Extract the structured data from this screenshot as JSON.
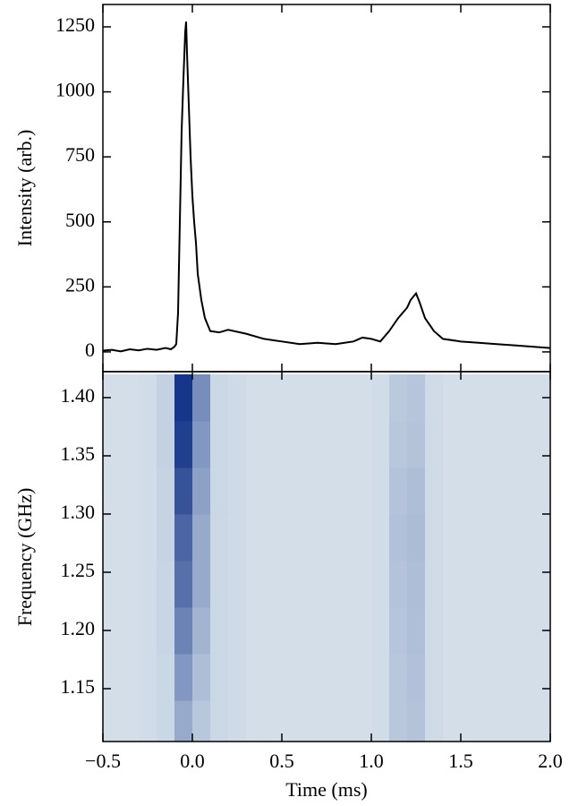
{
  "chart_data": [
    {
      "type": "line",
      "ylabel": "Intensity (arb.)",
      "color": "#000000",
      "x": [
        -0.5,
        -0.45,
        -0.4,
        -0.35,
        -0.3,
        -0.25,
        -0.2,
        -0.15,
        -0.12,
        -0.1,
        -0.09,
        -0.08,
        -0.07,
        -0.06,
        -0.05,
        -0.04,
        -0.035,
        -0.03,
        -0.02,
        -0.01,
        0,
        0.01,
        0.02,
        0.03,
        0.05,
        0.07,
        0.1,
        0.15,
        0.2,
        0.3,
        0.4,
        0.5,
        0.6,
        0.7,
        0.8,
        0.9,
        0.95,
        1.0,
        1.05,
        1.1,
        1.15,
        1.2,
        1.22,
        1.25,
        1.27,
        1.3,
        1.35,
        1.4,
        1.5,
        1.6,
        1.7,
        1.8,
        1.9,
        2.0
      ],
      "values": [
        5,
        8,
        2,
        10,
        6,
        12,
        8,
        15,
        10,
        20,
        30,
        150,
        500,
        850,
        1050,
        1230,
        1270,
        1150,
        950,
        750,
        600,
        500,
        420,
        300,
        200,
        130,
        80,
        75,
        85,
        70,
        50,
        40,
        30,
        35,
        30,
        40,
        55,
        50,
        40,
        80,
        130,
        170,
        200,
        225,
        190,
        130,
        80,
        50,
        40,
        35,
        30,
        25,
        20,
        15
      ],
      "xlim": [
        -0.5,
        2.0
      ],
      "xticks": [
        -0.5,
        0,
        0.5,
        1,
        1.5,
        2
      ],
      "ylim": [
        -76,
        1336
      ],
      "yticks": [
        0,
        250,
        500,
        750,
        1000,
        1250
      ]
    },
    {
      "type": "heatmap",
      "xlabel": "Time (ms)",
      "ylabel": "Frequency (GHz)",
      "cmap": [
        "#e4eef2",
        "#0a2c84"
      ],
      "xbins": [
        -0.5,
        -0.4,
        -0.3,
        -0.2,
        -0.1,
        0.0,
        0.1,
        0.2,
        0.3,
        0.4,
        0.5,
        0.6,
        0.7,
        0.8,
        0.9,
        1.0,
        1.1,
        1.2,
        1.3,
        1.4,
        1.5,
        1.6,
        1.7,
        1.8,
        1.9,
        2.0
      ],
      "ybins": [
        1.1,
        1.14,
        1.18,
        1.22,
        1.26,
        1.3,
        1.34,
        1.38,
        1.42
      ],
      "values": [
        [
          0.08,
          0.08,
          0.09,
          0.12,
          0.35,
          0.2,
          0.12,
          0.1,
          0.08,
          0.08,
          0.08,
          0.08,
          0.08,
          0.08,
          0.08,
          0.09,
          0.2,
          0.22,
          0.1,
          0.08,
          0.08,
          0.08,
          0.08,
          0.08,
          0.08
        ],
        [
          0.08,
          0.08,
          0.09,
          0.12,
          0.45,
          0.25,
          0.12,
          0.1,
          0.08,
          0.08,
          0.08,
          0.08,
          0.08,
          0.08,
          0.08,
          0.09,
          0.2,
          0.23,
          0.1,
          0.08,
          0.08,
          0.08,
          0.08,
          0.08,
          0.08
        ],
        [
          0.08,
          0.08,
          0.09,
          0.13,
          0.55,
          0.3,
          0.12,
          0.1,
          0.08,
          0.08,
          0.08,
          0.08,
          0.08,
          0.08,
          0.08,
          0.09,
          0.21,
          0.24,
          0.1,
          0.08,
          0.08,
          0.08,
          0.08,
          0.08,
          0.08
        ],
        [
          0.08,
          0.08,
          0.09,
          0.13,
          0.65,
          0.35,
          0.12,
          0.1,
          0.08,
          0.08,
          0.08,
          0.08,
          0.08,
          0.08,
          0.08,
          0.09,
          0.22,
          0.25,
          0.1,
          0.08,
          0.08,
          0.08,
          0.08,
          0.08,
          0.08
        ],
        [
          0.08,
          0.08,
          0.09,
          0.14,
          0.7,
          0.35,
          0.12,
          0.1,
          0.08,
          0.08,
          0.08,
          0.08,
          0.08,
          0.08,
          0.08,
          0.09,
          0.23,
          0.26,
          0.1,
          0.08,
          0.08,
          0.08,
          0.08,
          0.08,
          0.08
        ],
        [
          0.08,
          0.08,
          0.09,
          0.14,
          0.8,
          0.4,
          0.12,
          0.1,
          0.08,
          0.08,
          0.08,
          0.08,
          0.08,
          0.08,
          0.08,
          0.09,
          0.22,
          0.25,
          0.1,
          0.08,
          0.08,
          0.08,
          0.08,
          0.08,
          0.08
        ],
        [
          0.08,
          0.08,
          0.09,
          0.15,
          0.9,
          0.45,
          0.12,
          0.1,
          0.08,
          0.08,
          0.08,
          0.08,
          0.08,
          0.08,
          0.08,
          0.09,
          0.2,
          0.22,
          0.1,
          0.08,
          0.08,
          0.08,
          0.08,
          0.08,
          0.08
        ],
        [
          0.08,
          0.08,
          0.09,
          0.15,
          0.95,
          0.5,
          0.12,
          0.1,
          0.08,
          0.08,
          0.08,
          0.08,
          0.08,
          0.08,
          0.08,
          0.09,
          0.19,
          0.21,
          0.1,
          0.08,
          0.08,
          0.08,
          0.08,
          0.08,
          0.08
        ]
      ],
      "xlim": [
        -0.5,
        2.0
      ],
      "xticks": [
        {
          "value": -0.5,
          "label": "−0.5"
        },
        {
          "value": 0,
          "label": "0.0"
        },
        0.5,
        {
          "value": 1,
          "label": "1.0"
        },
        1.5,
        {
          "value": 2,
          "label": "2.0"
        }
      ],
      "ylim": [
        1.1046,
        1.4223
      ],
      "yticks": [
        1.15,
        {
          "value": 1.2,
          "label": "1.20"
        },
        1.25,
        {
          "value": 1.3,
          "label": "1.30"
        },
        1.35,
        {
          "value": 1.4,
          "label": "1.40"
        }
      ]
    }
  ]
}
